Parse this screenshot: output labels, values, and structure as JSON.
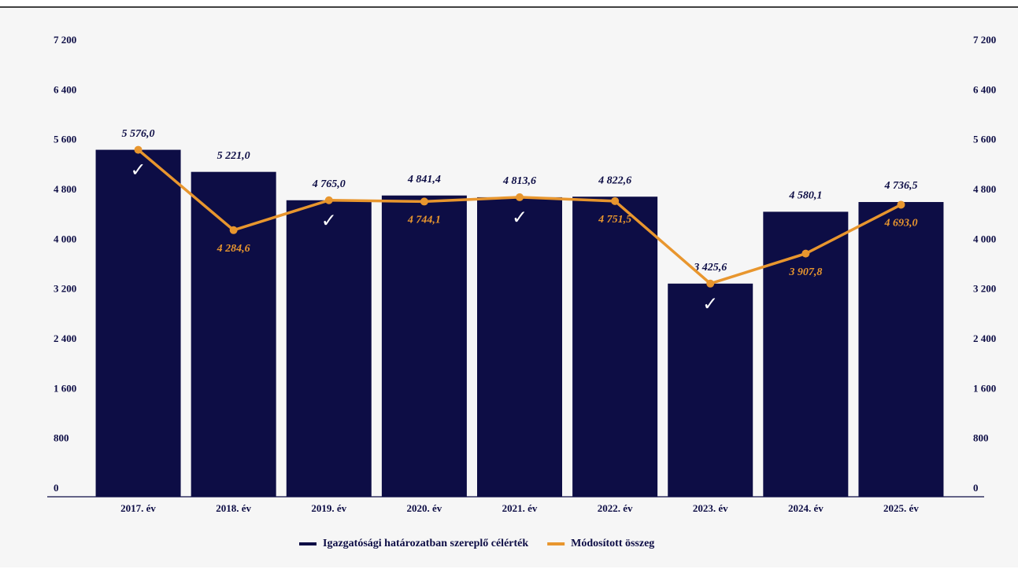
{
  "chart_data": {
    "type": "bar_line",
    "categories": [
      "2017. év",
      "2018. év",
      "2019. év",
      "2020. év",
      "2021. év",
      "2022. év",
      "2023. év",
      "2024. év",
      "2025. év"
    ],
    "series": [
      {
        "name": "Igazgatósági határozatban szereplő célérték",
        "color": "#0d0d45",
        "type": "bar",
        "values": [
          5576.0,
          5221.0,
          4765.0,
          4841.4,
          4813.6,
          4822.6,
          3425.6,
          4580.1,
          4736.5
        ],
        "value_labels": [
          "5 576,0",
          "5 221,0",
          "4 765,0",
          "4 841,4",
          "4 813,6",
          "4 822,6",
          "3 425,6",
          "4 580,1",
          "4 736,5"
        ]
      },
      {
        "name": "Módosított összeg",
        "color": "#e8962e",
        "type": "line",
        "axis": "y2",
        "values": [
          5576.0,
          4284.6,
          4765.0,
          4744.1,
          4813.6,
          4751.5,
          3425.6,
          3907.8,
          4693.0
        ],
        "value_labels": [
          "✓",
          "4 284,6",
          "✓",
          "4 744,1",
          "✓",
          "4 751,5",
          "✓",
          "3 907,8",
          "4 693,0"
        ]
      }
    ],
    "ylim": [
      0,
      7200
    ],
    "yticks": [
      0,
      800,
      {
        "value": 1600,
        "label": "1 600"
      },
      {
        "value": 2400,
        "label": "2 400"
      },
      {
        "value": 3200,
        "label": "3 200"
      },
      {
        "value": 4000,
        "label": "4 000"
      },
      {
        "value": 4800,
        "label": "4 800"
      },
      {
        "value": 5600,
        "label": "5 600"
      },
      {
        "value": 6400,
        "label": "6 400"
      },
      {
        "value": 7200,
        "label": "7 200"
      }
    ],
    "y2lim": [
      0,
      7200
    ],
    "y2ticks": [
      0,
      800,
      {
        "value": 1600,
        "label": "1 600"
      },
      {
        "value": 2400,
        "label": "2 400"
      },
      {
        "value": 3200,
        "label": "3 200"
      },
      {
        "value": 4000,
        "label": "4 000"
      },
      {
        "value": 4800,
        "label": "4 800"
      },
      {
        "value": 5600,
        "label": "5 600"
      },
      {
        "value": 6400,
        "label": "6 400"
      },
      {
        "value": 7200,
        "label": "7 200"
      }
    ],
    "grid": false,
    "legend": "bottom"
  }
}
